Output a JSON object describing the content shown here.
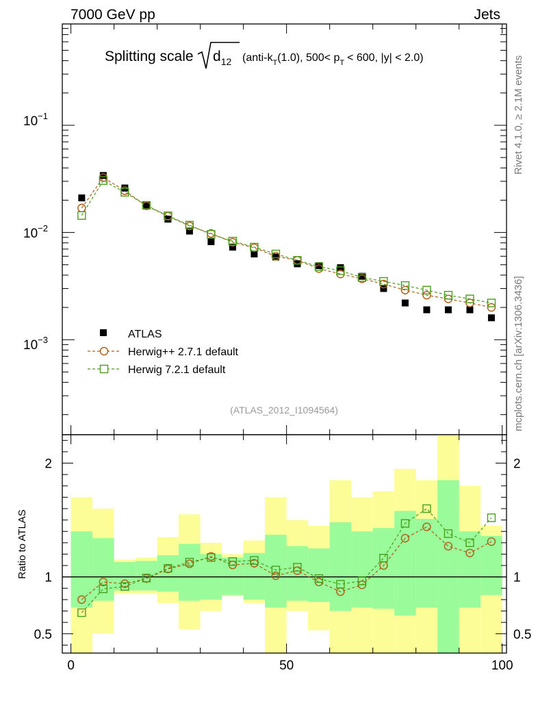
{
  "header": {
    "left": "7000 GeV pp",
    "right": "Jets"
  },
  "side_labels": {
    "rivet": "Rivet 4.1.0, ≥ 2.1M events",
    "mcplots": "mcplots.cern.ch [arXiv:1306.3436]"
  },
  "chart_data": [
    {
      "type": "scatter",
      "panel": "main",
      "title": {
        "main": "Splitting scale",
        "sqrt_sym": "d",
        "sqrt_sub": "12",
        "p1": "(anti-k",
        "p1_sub": "T",
        "p2": "(1.0), 500< p",
        "p2_sub": "T",
        "p3": "< 600, |y| < 2.0)"
      },
      "yscale": "log",
      "xlim": [
        -2,
        101
      ],
      "ylim": [
        0.00013,
        0.88
      ],
      "ytick_labels": [
        {
          "base": "10",
          "exp": "−1",
          "value": 0.1
        },
        {
          "base": "10",
          "exp": "−2",
          "value": 0.01
        },
        {
          "base": "10",
          "exp": "−3",
          "value": 0.001
        }
      ],
      "x": [
        2.5,
        7.5,
        12.5,
        17.5,
        22.5,
        27.5,
        32.5,
        37.5,
        42.5,
        47.5,
        52.5,
        57.5,
        62.5,
        67.5,
        72.5,
        77.5,
        82.5,
        87.5,
        92.5,
        97.5
      ],
      "series": [
        {
          "name": "ATLAS",
          "color": "#000000",
          "marker": "filled-square",
          "values": [
            0.021,
            0.034,
            0.026,
            0.018,
            0.0133,
            0.0103,
            0.0082,
            0.0073,
            0.0063,
            0.0059,
            0.0051,
            0.0049,
            0.0047,
            0.0039,
            0.003,
            0.0022,
            0.0019,
            0.0019,
            0.0019,
            0.0016
          ]
        },
        {
          "name": "Herwig++ 2.7.1 default",
          "color": "#b15c15",
          "marker": "open-circle",
          "values": [
            0.0169,
            0.0325,
            0.0245,
            0.0177,
            0.0142,
            0.0115,
            0.0098,
            0.0081,
            0.0072,
            0.006,
            0.0055,
            0.0046,
            0.0041,
            0.0037,
            0.0033,
            0.0029,
            0.0026,
            0.0024,
            0.0022,
            0.002
          ]
        },
        {
          "name": "Herwig 7.2.1 default",
          "color": "#4a9e1b",
          "marker": "open-square",
          "values": [
            0.0144,
            0.0305,
            0.0237,
            0.0179,
            0.0143,
            0.0117,
            0.0096,
            0.0083,
            0.0073,
            0.0063,
            0.0055,
            0.0048,
            0.0044,
            0.0038,
            0.0035,
            0.0032,
            0.0029,
            0.0026,
            0.0024,
            0.0022
          ]
        }
      ],
      "legend_position": "lower-left",
      "annotation": "(ATLAS_2012_I1094564)"
    },
    {
      "type": "line",
      "panel": "ratio",
      "ylabel": "Ratio to ATLAS",
      "xlim": [
        -2,
        101
      ],
      "ylim": [
        0.33,
        2.25
      ],
      "xticks": [
        0,
        50,
        100
      ],
      "xtick_labels": [
        "0",
        "50",
        "100"
      ],
      "yticks": [
        0.5,
        1,
        2
      ],
      "ytick_labels": [
        "0.5",
        "1",
        "2"
      ],
      "bin_edges": [
        0,
        5,
        10,
        15,
        20,
        25,
        30,
        35,
        40,
        45,
        50,
        55,
        60,
        65,
        70,
        75,
        80,
        85,
        90,
        95,
        100
      ],
      "band_outer": {
        "color": "#fdfd98",
        "lo": [
          0.33,
          0.5,
          0.85,
          0.85,
          0.77,
          0.54,
          0.7,
          0.83,
          0.77,
          0.33,
          0.7,
          0.53,
          0.33,
          0.33,
          0.33,
          0.33,
          0.33,
          0.33,
          0.33,
          0.33
        ],
        "hi": [
          1.7,
          1.6,
          1.15,
          1.17,
          1.35,
          1.55,
          1.3,
          1.2,
          1.32,
          1.7,
          1.5,
          1.45,
          1.85,
          1.7,
          1.75,
          1.95,
          1.85,
          2.25,
          1.8,
          1.45
        ]
      },
      "band_inner": {
        "color": "#99fb99",
        "lo": [
          0.73,
          0.79,
          0.88,
          0.88,
          0.87,
          0.79,
          0.8,
          0.84,
          0.8,
          0.73,
          0.79,
          0.78,
          0.7,
          0.73,
          0.72,
          0.66,
          0.73,
          0.33,
          0.73,
          0.84
        ],
        "hi": [
          1.4,
          1.34,
          1.13,
          1.14,
          1.19,
          1.29,
          1.2,
          1.17,
          1.21,
          1.37,
          1.27,
          1.25,
          1.48,
          1.4,
          1.43,
          1.58,
          1.51,
          1.85,
          1.4,
          1.36
        ]
      },
      "series": [
        {
          "name": "Herwig++ 2.7.1 default",
          "color": "#b15c15",
          "marker": "open-circle",
          "values": [
            0.8,
            0.955,
            0.94,
            0.985,
            1.07,
            1.115,
            1.18,
            1.105,
            1.12,
            1.01,
            1.055,
            0.955,
            0.87,
            0.93,
            1.1,
            1.34,
            1.44,
            1.27,
            1.21,
            1.31
          ]
        },
        {
          "name": "Herwig 7.2.1 default",
          "color": "#4a9e1b",
          "marker": "open-square",
          "values": [
            0.685,
            0.895,
            0.915,
            0.99,
            1.075,
            1.13,
            1.17,
            1.135,
            1.145,
            1.06,
            1.085,
            0.985,
            0.935,
            0.965,
            1.165,
            1.47,
            1.6,
            1.38,
            1.3,
            1.52
          ]
        }
      ]
    }
  ]
}
